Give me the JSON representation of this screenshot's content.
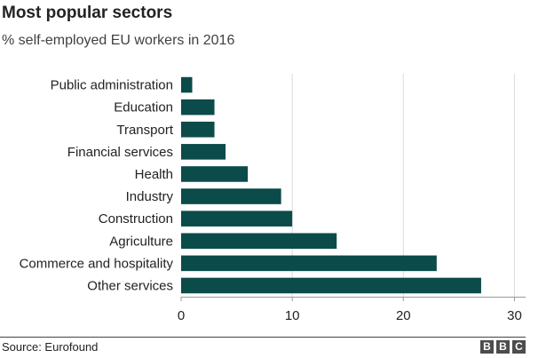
{
  "header": {
    "title": "Most popular sectors",
    "subtitle": "% self-employed EU workers in 2016"
  },
  "footer": {
    "source": "Source: Eurofound",
    "logo_letters": [
      "B",
      "B",
      "C"
    ]
  },
  "colors": {
    "bar": "#0b4b4a",
    "grid": "#dcdcdc",
    "axis": "#999999"
  },
  "chart_data": {
    "type": "bar",
    "orientation": "horizontal",
    "categories": [
      "Public administration",
      "Education",
      "Transport",
      "Financial services",
      "Health",
      "Industry",
      "Construction",
      "Agriculture",
      "Commerce and hospitality",
      "Other services"
    ],
    "values": [
      1,
      3,
      3,
      4,
      6,
      9,
      10,
      14,
      23,
      27
    ],
    "xlim": [
      0,
      31
    ],
    "xticks": [
      0,
      10,
      20,
      30
    ],
    "grid": true
  }
}
